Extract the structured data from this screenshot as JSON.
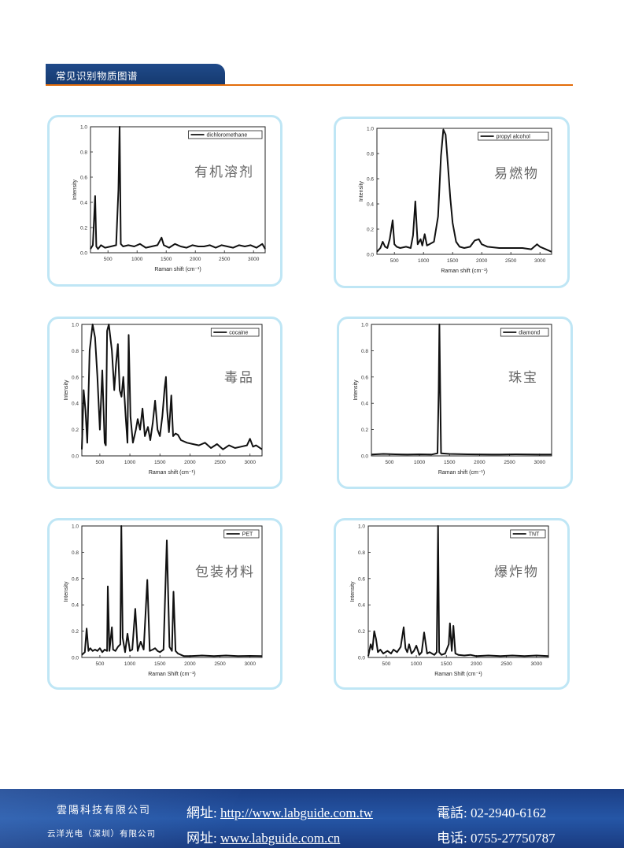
{
  "header": {
    "title": "常见识别物质图谱"
  },
  "charts": [
    {
      "category": "有机溶剂",
      "legend": "dichloromethane",
      "xlabel": "Raman shift (cm⁻¹)",
      "ylabel": "Intensity",
      "xticks": [
        "500",
        "1000",
        "1500",
        "2000",
        "2500",
        "3000"
      ],
      "yticks": [
        "0.0",
        "0.2",
        "0.4",
        "0.6",
        "0.8",
        "1.0"
      ]
    },
    {
      "category": "易燃物",
      "legend": "propyl alcohol",
      "xlabel": "Raman shift (cm⁻¹)",
      "ylabel": "Intensity",
      "xticks": [
        "500",
        "1000",
        "1500",
        "2000",
        "2500",
        "3000"
      ],
      "yticks": [
        "0.0",
        "0.2",
        "0.4",
        "0.6",
        "0.8",
        "1.0"
      ]
    },
    {
      "category": "毒品",
      "legend": "cocaine",
      "xlabel": "Raman shift (cm⁻¹)",
      "ylabel": "Intensity",
      "xticks": [
        "500",
        "1000",
        "1500",
        "2000",
        "2500",
        "3000"
      ],
      "yticks": [
        "0.0",
        "0.2",
        "0.4",
        "0.6",
        "0.8",
        "1.0"
      ]
    },
    {
      "category": "珠宝",
      "legend": "diamond",
      "xlabel": "Raman shift (cm⁻¹)",
      "ylabel": "Intensity",
      "xticks": [
        "500",
        "1000",
        "1500",
        "2000",
        "2500",
        "3000"
      ],
      "yticks": [
        "0.0",
        "0.2",
        "0.4",
        "0.6",
        "0.8",
        "1.0"
      ]
    },
    {
      "category": "包装材料",
      "legend": "PET",
      "xlabel": "Raman Shift (cm⁻¹)",
      "ylabel": "Intensity",
      "xticks": [
        "500",
        "1000",
        "1500",
        "2000",
        "2500",
        "3000"
      ],
      "yticks": [
        "0.0",
        "0.2",
        "0.4",
        "0.6",
        "0.8",
        "1.0"
      ]
    },
    {
      "category": "爆炸物",
      "legend": "TNT",
      "xlabel": "Raman Shift (cm⁻¹)",
      "ylabel": "Intensity",
      "xticks": [
        "500",
        "1000",
        "1500",
        "2000",
        "2500",
        "3000"
      ],
      "yticks": [
        "0.0",
        "0.2",
        "0.4",
        "0.6",
        "0.8",
        "1.0"
      ]
    }
  ],
  "chart_data": [
    {
      "type": "line",
      "title": "",
      "xlabel": "Raman shift (cm⁻¹)",
      "ylabel": "Intensity",
      "xlim": [
        200,
        3200
      ],
      "ylim": [
        0,
        1.0
      ],
      "series": [
        {
          "name": "dichloromethane",
          "x": [
            200,
            240,
            280,
            300,
            330,
            380,
            450,
            550,
            640,
            680,
            700,
            720,
            760,
            850,
            950,
            1050,
            1150,
            1250,
            1350,
            1420,
            1460,
            1550,
            1650,
            1750,
            1850,
            1950,
            2050,
            2150,
            2250,
            2350,
            2450,
            2550,
            2650,
            2750,
            2850,
            2950,
            3050,
            3150,
            3200
          ],
          "y": [
            0.03,
            0.06,
            0.45,
            0.05,
            0.03,
            0.06,
            0.04,
            0.05,
            0.06,
            0.5,
            1.0,
            0.07,
            0.05,
            0.06,
            0.05,
            0.07,
            0.04,
            0.05,
            0.06,
            0.12,
            0.06,
            0.04,
            0.07,
            0.05,
            0.04,
            0.06,
            0.05,
            0.05,
            0.06,
            0.04,
            0.06,
            0.05,
            0.04,
            0.06,
            0.05,
            0.06,
            0.04,
            0.07,
            0.03
          ]
        }
      ]
    },
    {
      "type": "line",
      "title": "",
      "xlabel": "Raman shift (cm⁻¹)",
      "ylabel": "Intensity",
      "xlim": [
        200,
        3200
      ],
      "ylim": [
        0,
        1.0
      ],
      "series": [
        {
          "name": "propyl alcohol",
          "x": [
            200,
            260,
            300,
            340,
            380,
            420,
            470,
            500,
            540,
            600,
            700,
            780,
            820,
            860,
            900,
            950,
            980,
            1020,
            1060,
            1100,
            1180,
            1250,
            1300,
            1340,
            1380,
            1420,
            1460,
            1500,
            1560,
            1620,
            1700,
            1800,
            1880,
            1950,
            2000,
            2100,
            2300,
            2500,
            2700,
            2850,
            2950,
            3000,
            3100,
            3200
          ],
          "y": [
            0.02,
            0.05,
            0.1,
            0.06,
            0.05,
            0.12,
            0.27,
            0.08,
            0.06,
            0.05,
            0.06,
            0.05,
            0.15,
            0.42,
            0.08,
            0.12,
            0.07,
            0.16,
            0.07,
            0.08,
            0.1,
            0.3,
            0.78,
            0.99,
            0.95,
            0.7,
            0.45,
            0.25,
            0.1,
            0.06,
            0.05,
            0.06,
            0.11,
            0.12,
            0.08,
            0.06,
            0.05,
            0.05,
            0.05,
            0.04,
            0.08,
            0.06,
            0.04,
            0.02
          ]
        }
      ]
    },
    {
      "type": "line",
      "title": "",
      "xlabel": "Raman shift (cm⁻¹)",
      "ylabel": "Intensity",
      "xlim": [
        200,
        3200
      ],
      "ylim": [
        0,
        1.0
      ],
      "series": [
        {
          "name": "cocaine",
          "x": [
            200,
            230,
            260,
            290,
            330,
            380,
            420,
            460,
            500,
            540,
            580,
            600,
            620,
            650,
            700,
            740,
            770,
            800,
            830,
            860,
            890,
            930,
            960,
            980,
            1010,
            1050,
            1100,
            1130,
            1170,
            1210,
            1250,
            1300,
            1340,
            1380,
            1420,
            1460,
            1500,
            1540,
            1580,
            1600,
            1620,
            1650,
            1690,
            1720,
            1760,
            1800,
            1850,
            1950,
            2050,
            2150,
            2250,
            2350,
            2450,
            2550,
            2650,
            2750,
            2850,
            2950,
            3000,
            3050,
            3100,
            3200
          ],
          "y": [
            0.05,
            0.5,
            0.35,
            0.1,
            0.8,
            1.0,
            0.9,
            0.6,
            0.2,
            0.65,
            0.1,
            0.08,
            0.95,
            1.0,
            0.8,
            0.5,
            0.7,
            0.85,
            0.5,
            0.45,
            0.6,
            0.3,
            0.1,
            0.92,
            0.3,
            0.1,
            0.2,
            0.28,
            0.2,
            0.36,
            0.15,
            0.22,
            0.12,
            0.25,
            0.42,
            0.2,
            0.15,
            0.3,
            0.52,
            0.6,
            0.35,
            0.18,
            0.46,
            0.15,
            0.17,
            0.16,
            0.12,
            0.1,
            0.09,
            0.08,
            0.1,
            0.06,
            0.09,
            0.05,
            0.08,
            0.06,
            0.07,
            0.08,
            0.13,
            0.07,
            0.08,
            0.05
          ]
        }
      ]
    },
    {
      "type": "line",
      "title": "",
      "xlabel": "Raman shift (cm⁻¹)",
      "ylabel": "Intensity",
      "xlim": [
        200,
        3200
      ],
      "ylim": [
        0,
        1.0
      ],
      "series": [
        {
          "name": "diamond",
          "x": [
            200,
            400,
            600,
            800,
            1000,
            1200,
            1300,
            1320,
            1332,
            1345,
            1360,
            1500,
            1800,
            2200,
            2600,
            3000,
            3200
          ],
          "y": [
            0.01,
            0.015,
            0.012,
            0.01,
            0.012,
            0.01,
            0.02,
            0.5,
            1.0,
            0.5,
            0.02,
            0.015,
            0.012,
            0.01,
            0.012,
            0.01,
            0.01
          ]
        }
      ]
    },
    {
      "type": "line",
      "title": "",
      "xlabel": "Raman Shift (cm⁻¹)",
      "ylabel": "Intensity",
      "xlim": [
        200,
        3200
      ],
      "ylim": [
        0,
        1.0
      ],
      "series": [
        {
          "name": "PET",
          "x": [
            200,
            250,
            280,
            310,
            340,
            380,
            420,
            460,
            500,
            540,
            580,
            620,
            632,
            660,
            700,
            720,
            760,
            800,
            840,
            858,
            880,
            920,
            960,
            1000,
            1040,
            1090,
            1130,
            1180,
            1230,
            1290,
            1330,
            1380,
            1420,
            1460,
            1500,
            1560,
            1615,
            1660,
            1700,
            1726,
            1760,
            1800,
            1900,
            2000,
            2200,
            2400,
            2600,
            2800,
            3000,
            3200
          ],
          "y": [
            0.02,
            0.04,
            0.22,
            0.05,
            0.07,
            0.05,
            0.06,
            0.05,
            0.07,
            0.04,
            0.06,
            0.05,
            0.54,
            0.05,
            0.23,
            0.06,
            0.05,
            0.08,
            0.1,
            1.0,
            0.15,
            0.04,
            0.18,
            0.05,
            0.06,
            0.37,
            0.05,
            0.12,
            0.06,
            0.59,
            0.05,
            0.06,
            0.07,
            0.05,
            0.04,
            0.06,
            0.89,
            0.08,
            0.05,
            0.5,
            0.05,
            0.03,
            0.01,
            0.01,
            0.015,
            0.01,
            0.015,
            0.01,
            0.012,
            0.01
          ]
        }
      ]
    },
    {
      "type": "line",
      "title": "",
      "xlabel": "Raman Shift (cm⁻¹)",
      "ylabel": "Intensity",
      "xlim": [
        200,
        3200
      ],
      "ylim": [
        0,
        1.0
      ],
      "series": [
        {
          "name": "TNT",
          "x": [
            200,
            240,
            270,
            300,
            330,
            360,
            400,
            450,
            520,
            580,
            620,
            680,
            740,
            790,
            820,
            850,
            880,
            920,
            960,
            1000,
            1050,
            1090,
            1130,
            1180,
            1220,
            1260,
            1300,
            1340,
            1362,
            1380,
            1420,
            1480,
            1540,
            1560,
            1590,
            1617,
            1650,
            1700,
            1800,
            1900,
            2000,
            2200,
            2400,
            2600,
            2800,
            3000,
            3200
          ],
          "y": [
            0.01,
            0.1,
            0.06,
            0.2,
            0.14,
            0.04,
            0.06,
            0.03,
            0.05,
            0.03,
            0.06,
            0.04,
            0.08,
            0.23,
            0.07,
            0.04,
            0.1,
            0.03,
            0.05,
            0.09,
            0.02,
            0.04,
            0.19,
            0.03,
            0.04,
            0.03,
            0.02,
            0.04,
            1.0,
            0.04,
            0.02,
            0.03,
            0.1,
            0.26,
            0.05,
            0.24,
            0.03,
            0.02,
            0.015,
            0.02,
            0.01,
            0.015,
            0.01,
            0.015,
            0.01,
            0.015,
            0.01
          ]
        }
      ]
    }
  ],
  "footer": {
    "company_tw": "雲陽科技有限公司",
    "company_cn": "云洋光电（深圳）有限公司",
    "web_tw_label": "網址: ",
    "web_tw": "http://www.labguide.com.tw",
    "web_cn_label": "网址: ",
    "web_cn": "www.labguide.com.cn",
    "tel_tw_label": "電話: ",
    "tel_tw": "02-2940-6162",
    "tel_cn_label": "电话: ",
    "tel_cn": "0755-27750787"
  }
}
